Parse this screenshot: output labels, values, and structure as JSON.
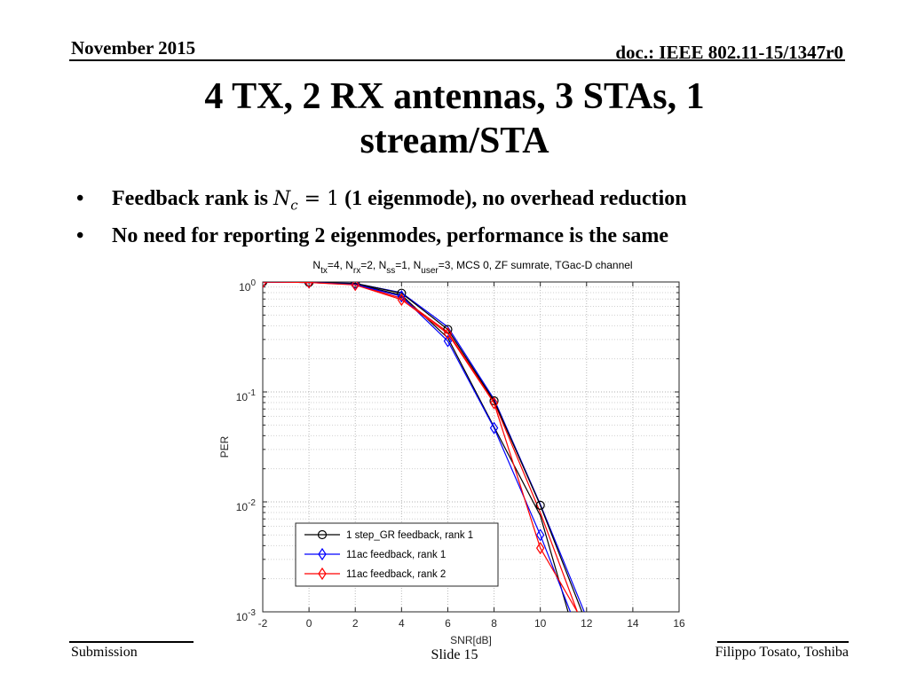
{
  "header": {
    "date": "November 2015",
    "doc": "doc.: IEEE 802.11-15/1347r0"
  },
  "slide_title": {
    "line1": "4 TX, 2 RX antennas, 3 STAs, 1",
    "line2": "stream/STA"
  },
  "bullets": [
    {
      "before": "Feedback rank is ",
      "math_var": "N",
      "math_sub": "c",
      "math_rest": " = 1",
      "after": " (1 eigenmode), no overhead reduction"
    },
    {
      "text": "No need for reporting 2 eigenmodes, performance is the same"
    }
  ],
  "footer": {
    "left": "Submission",
    "center": "Slide 15",
    "right": "Filippo Tosato, Toshiba"
  },
  "chart_data": {
    "type": "line",
    "title": "N_tx=4, N_rx=2, N_ss=1, N_user=3, MCS 0, ZF sumrate, TGac-D channel",
    "xlabel": "SNR[dB]",
    "ylabel": "PER",
    "x_scale": "linear",
    "y_scale": "log",
    "xlim": [
      -2,
      16
    ],
    "ylim": [
      0.001,
      1
    ],
    "x_ticks": [
      "-2",
      "0",
      "2",
      "4",
      "6",
      "8",
      "10",
      "12",
      "14",
      "16"
    ],
    "y_ticks": [
      {
        "value": 1,
        "base": "10",
        "exp": "0"
      },
      {
        "value": 0.1,
        "base": "10",
        "exp": "-1"
      },
      {
        "value": 0.01,
        "base": "10",
        "exp": "-2"
      },
      {
        "value": 0.001,
        "base": "10",
        "exp": "-3"
      }
    ],
    "grid": true,
    "legend_position": "bottom-left",
    "series": [
      {
        "name": "1 step_GR feedback, rank 1",
        "color": "#000000",
        "marker": "circle",
        "x": [
          -2,
          0,
          2,
          4,
          6,
          8,
          10,
          11.8
        ],
        "y": [
          1.0,
          0.99,
          0.97,
          0.79,
          0.37,
          0.083,
          0.0093,
          0.001
        ]
      },
      {
        "name": "11ac feedback, rank 1",
        "color": "#0000ff",
        "marker": "diamond",
        "x": [
          -2,
          0,
          2,
          4,
          6,
          8,
          10,
          11.3
        ],
        "y": [
          1.0,
          0.99,
          0.95,
          0.74,
          0.29,
          0.047,
          0.005,
          0.001
        ]
      },
      {
        "name": "11ac feedback, rank 2",
        "color": "#ff0000",
        "marker": "diamond",
        "x": [
          -2,
          0,
          2,
          4,
          6,
          8,
          10,
          11.6
        ],
        "y": [
          1.0,
          0.99,
          0.94,
          0.69,
          0.34,
          0.079,
          0.0038,
          0.001
        ]
      }
    ],
    "extra_lines": [
      {
        "color": "#000000",
        "x": [
          -2,
          0,
          2,
          4,
          6,
          8,
          10,
          11.2
        ],
        "y": [
          1.0,
          0.99,
          0.96,
          0.76,
          0.31,
          0.048,
          0.0075,
          0.001
        ]
      },
      {
        "color": "#0000ff",
        "x": [
          -2,
          0,
          2,
          4,
          6,
          8,
          10,
          11.9
        ],
        "y": [
          1.0,
          0.99,
          0.97,
          0.8,
          0.39,
          0.086,
          0.0095,
          0.001
        ]
      },
      {
        "color": "#ff0000",
        "x": [
          -2,
          0,
          2,
          4,
          6,
          8,
          10,
          11.6
        ],
        "y": [
          1.0,
          0.99,
          0.95,
          0.71,
          0.35,
          0.081,
          0.008,
          0.001
        ]
      }
    ]
  }
}
